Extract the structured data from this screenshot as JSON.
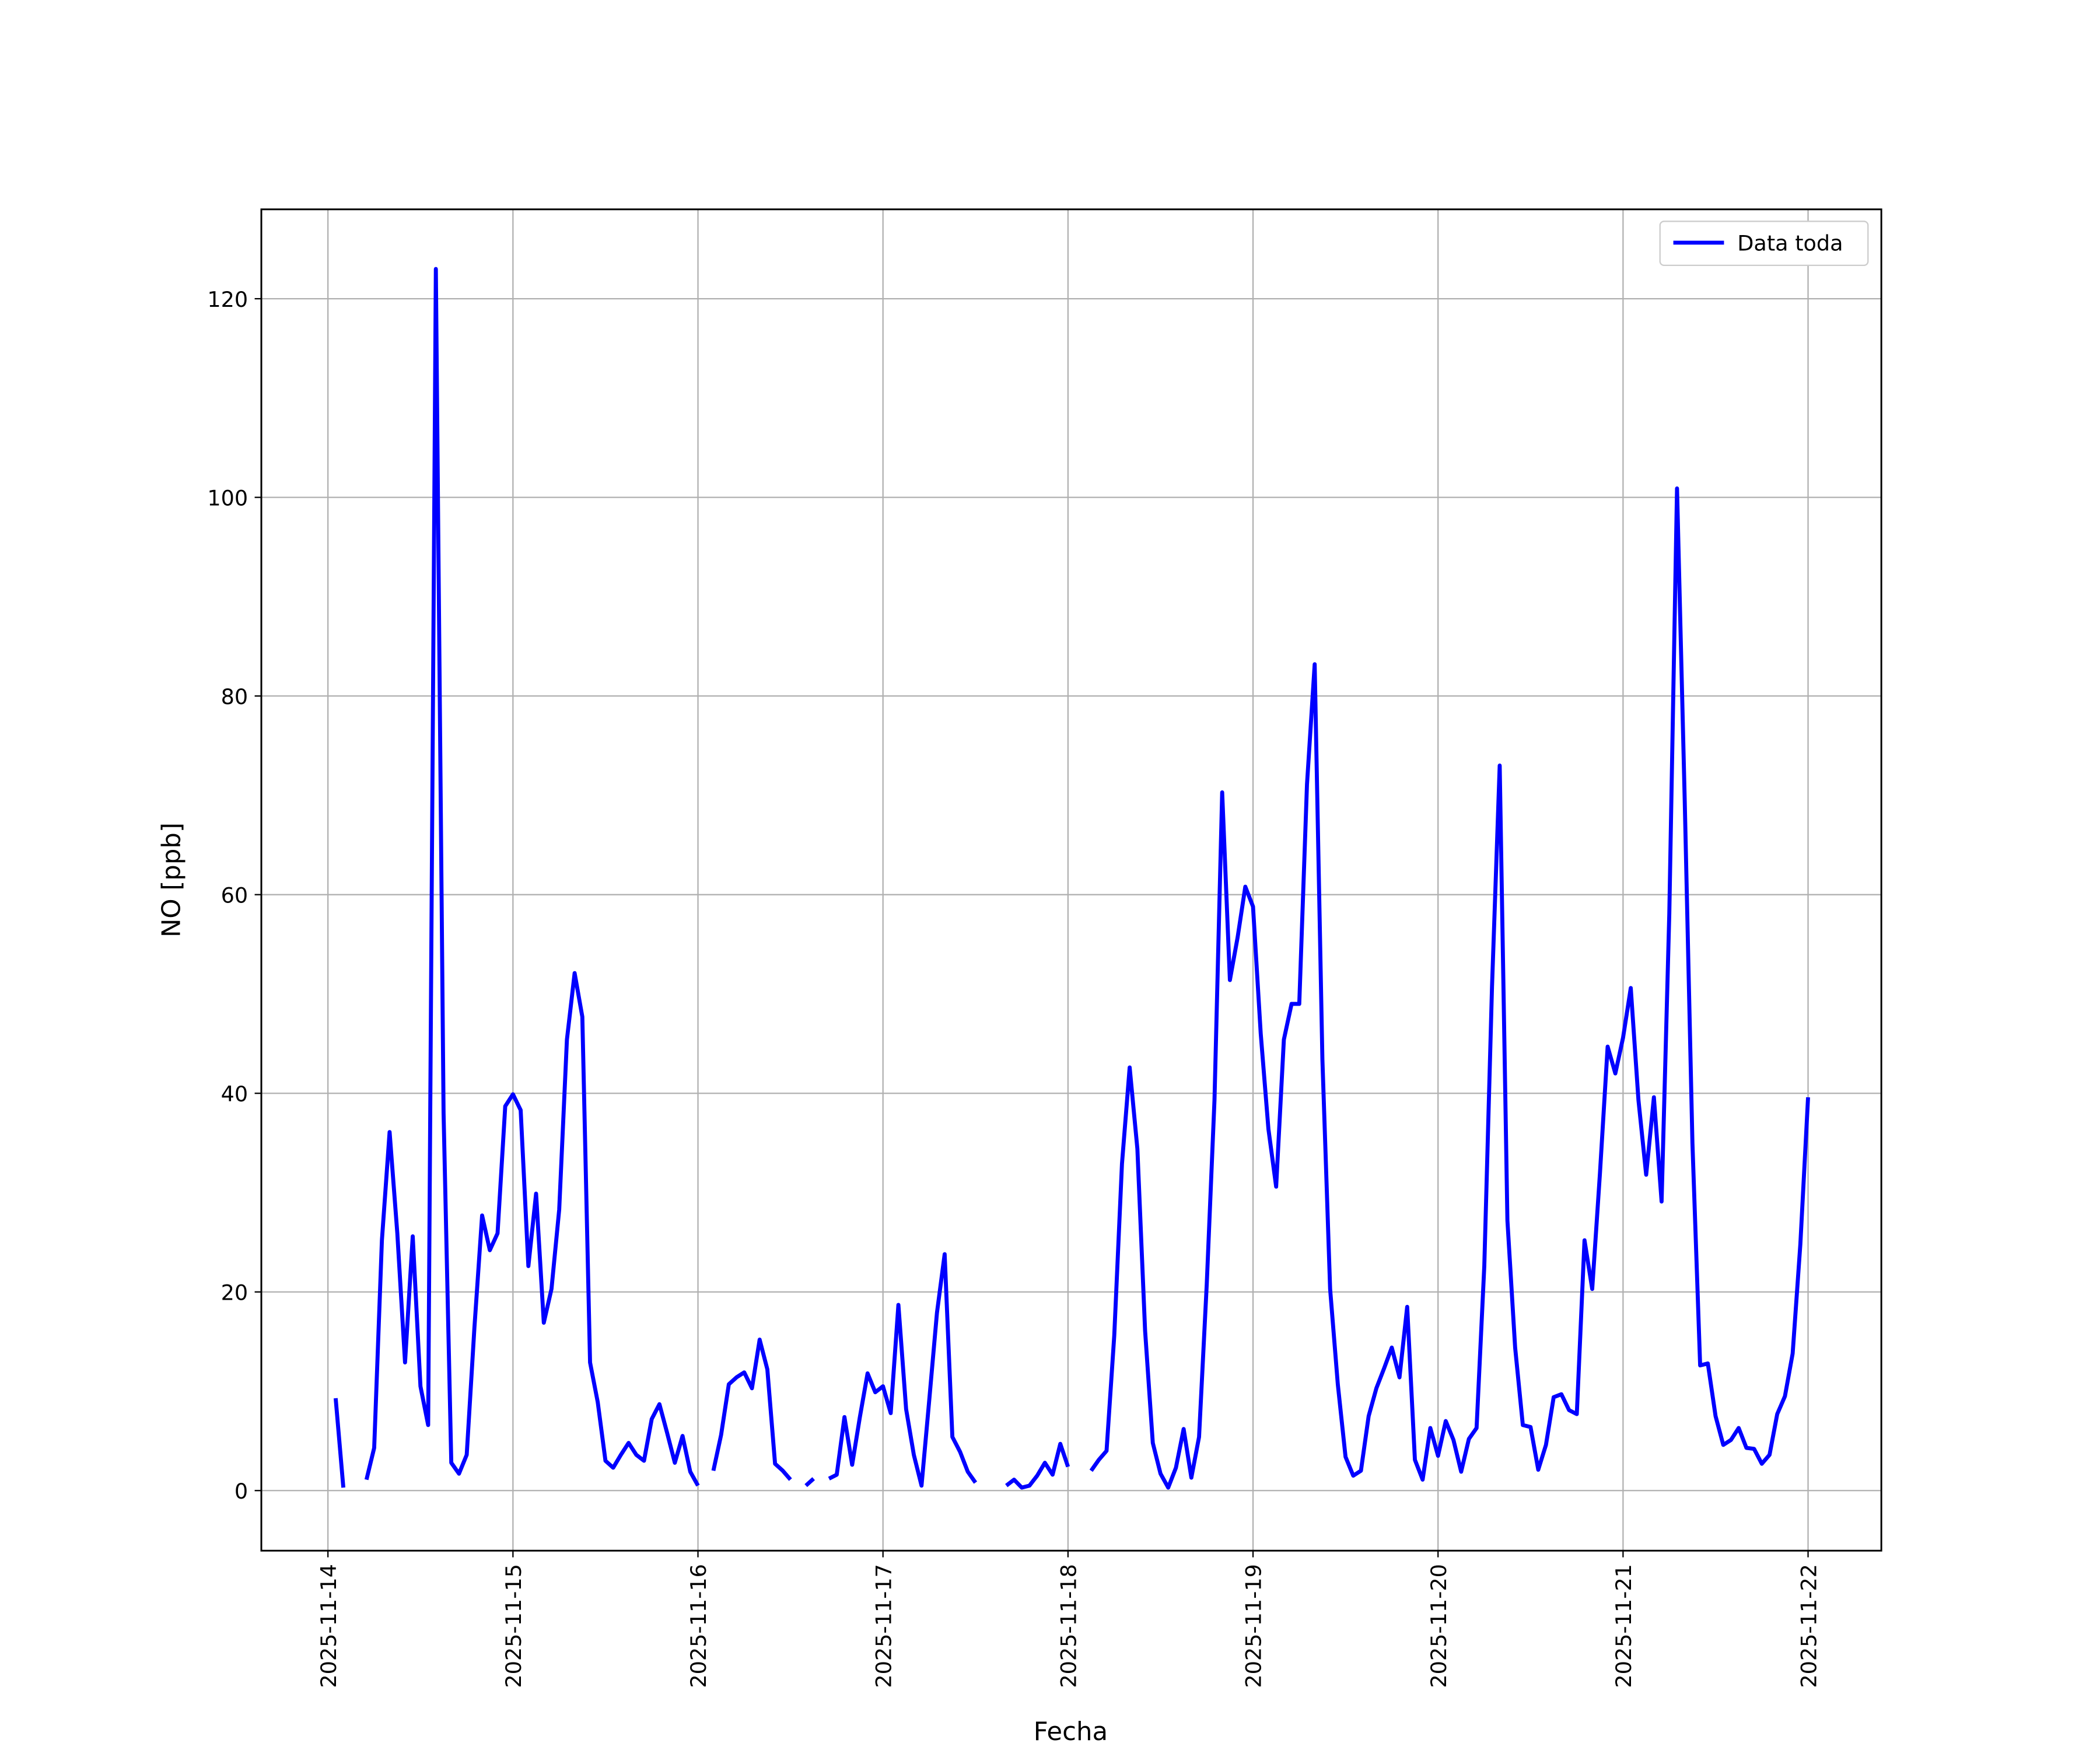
{
  "chart_data": {
    "type": "line",
    "xlabel": "Fecha",
    "ylabel": "NO [ppb]",
    "x": [
      0.0417,
      0.0833,
      0.125,
      0.1667,
      0.2083,
      0.25,
      0.2917,
      0.3333,
      0.375,
      0.4167,
      0.4583,
      0.5,
      0.5417,
      0.5833,
      0.625,
      0.6667,
      0.7083,
      0.75,
      0.7917,
      0.8333,
      0.875,
      0.9167,
      0.9583,
      1,
      1.0417,
      1.0833,
      1.125,
      1.1667,
      1.2083,
      1.25,
      1.2917,
      1.3333,
      1.375,
      1.4167,
      1.4583,
      1.5,
      1.5417,
      1.5833,
      1.625,
      1.6667,
      1.7083,
      1.75,
      1.7917,
      1.8333,
      1.875,
      1.9167,
      1.9583,
      2,
      2.0417,
      2.0833,
      2.125,
      2.1667,
      2.2083,
      2.25,
      2.2917,
      2.3333,
      2.375,
      2.4167,
      2.4583,
      2.5,
      2.5417,
      2.5833,
      2.625,
      2.6667,
      2.7083,
      2.75,
      2.7917,
      2.8333,
      2.875,
      2.9167,
      2.9583,
      3,
      3.0417,
      3.0833,
      3.125,
      3.1667,
      3.2083,
      3.25,
      3.2917,
      3.3333,
      3.375,
      3.4167,
      3.4583,
      3.5,
      3.5417,
      3.5833,
      3.625,
      3.6667,
      3.7083,
      3.75,
      3.7917,
      3.8333,
      3.875,
      3.9167,
      3.9583,
      4,
      4.0417,
      4.0833,
      4.125,
      4.1667,
      4.2083,
      4.25,
      4.2917,
      4.3333,
      4.375,
      4.4167,
      4.4583,
      4.5,
      4.5417,
      4.5833,
      4.625,
      4.6667,
      4.7083,
      4.75,
      4.7917,
      4.8333,
      4.875,
      4.9167,
      4.9583,
      5,
      5.0417,
      5.0833,
      5.125,
      5.1667,
      5.2083,
      5.25,
      5.2917,
      5.3333,
      5.375,
      5.4167,
      5.4583,
      5.5,
      5.5417,
      5.5833,
      5.625,
      5.6667,
      5.7083,
      5.75,
      5.7917,
      5.8333,
      5.875,
      5.9167,
      5.9583,
      6,
      6.0417,
      6.0833,
      6.125,
      6.1667,
      6.2083,
      6.25,
      6.2917,
      6.3333,
      6.375,
      6.4167,
      6.4583,
      6.5,
      6.5417,
      6.5833,
      6.625,
      6.6667,
      6.7083,
      6.75,
      6.7917,
      6.8333,
      6.875,
      6.9167,
      6.9583,
      7,
      7.0417,
      7.0833,
      7.125,
      7.1667,
      7.2083,
      7.25,
      7.2917,
      7.3333,
      7.375,
      7.4167,
      7.4583,
      7.5,
      7.5417,
      7.5833,
      7.625,
      7.6667,
      7.7083,
      7.75,
      7.7917,
      7.8333,
      7.875,
      7.9167,
      7.9583,
      8
    ],
    "series": [
      {
        "name": "Data toda",
        "color": "#0000ff",
        "values": [
          9.3,
          0.3,
          null,
          null,
          1.1,
          4.3,
          25.2,
          36.1,
          25.9,
          12.9,
          25.6,
          10.5,
          6.6,
          123,
          38,
          2.8,
          1.7,
          3.6,
          16.4,
          27.7,
          24.2,
          25.9,
          38.7,
          39.9,
          38.3,
          22.6,
          29.9,
          16.9,
          20.3,
          28.3,
          45.4,
          52.1,
          47.7,
          12.9,
          8.9,
          3.0,
          2.3,
          3.6,
          4.8,
          3.6,
          3.0,
          7.2,
          8.7,
          5.8,
          2.8,
          5.5,
          1.9,
          0.5,
          null,
          2.0,
          5.6,
          10.7,
          11.4,
          11.9,
          10.3,
          15.2,
          12.2,
          2.7,
          2.0,
          1.1,
          null,
          0.5,
          1.2,
          null,
          1.2,
          1.6,
          7.4,
          2.6,
          7.4,
          11.8,
          9.9,
          10.5,
          7.8,
          18.7,
          8.2,
          3.6,
          0.5,
          9.1,
          17.9,
          23.8,
          5.4,
          3.9,
          1.9,
          0.8,
          null,
          null,
          null,
          0.5,
          1.1,
          0.3,
          0.5,
          1.5,
          2.8,
          1.6,
          4.7,
          2.4,
          null,
          null,
          2.0,
          3.1,
          4.0,
          15.6,
          32.9,
          42.6,
          34.4,
          16.1,
          4.8,
          1.7,
          0.3,
          2.3,
          6.2,
          1.3,
          5.4,
          20.8,
          39.3,
          70.3,
          51.4,
          55.7,
          60.8,
          58.8,
          46.0,
          36.4,
          30.6,
          45.4,
          49.0,
          49.0,
          71.1,
          83.2,
          43.4,
          20.3,
          10.7,
          3.4,
          1.5,
          2.0,
          7.5,
          10.3,
          12.3,
          14.4,
          11.4,
          18.5,
          3.1,
          1.1,
          6.3,
          3.5,
          7.0,
          5.1,
          1.9,
          5.2,
          6.3,
          22.6,
          50.7,
          73.0,
          27.2,
          14.4,
          6.6,
          6.4,
          2.1,
          4.6,
          9.4,
          9.7,
          8.1,
          7.7,
          25.2,
          20.3,
          31.9,
          44.7,
          42.0,
          45.6,
          50.6,
          39.3,
          31.8,
          39.6,
          29.1,
          58.1,
          100.9,
          69.5,
          35.0,
          12.6,
          12.8,
          7.5,
          4.6,
          5.1,
          6.3,
          4.3,
          4.2,
          2.7,
          3.6,
          7.7,
          9.5,
          13.8,
          24.8,
          39.6
        ]
      }
    ],
    "xlim": [
      -0.36,
      8.396
    ],
    "xticks": [
      {
        "value": 0,
        "label": "2025-11-14"
      },
      {
        "value": 1,
        "label": "2025-11-15"
      },
      {
        "value": 2,
        "label": "2025-11-16"
      },
      {
        "value": 3,
        "label": "2025-11-17"
      },
      {
        "value": 4,
        "label": "2025-11-18"
      },
      {
        "value": 5,
        "label": "2025-11-19"
      },
      {
        "value": 6,
        "label": "2025-11-20"
      },
      {
        "value": 7,
        "label": "2025-11-21"
      },
      {
        "value": 8,
        "label": "2025-11-22"
      }
    ],
    "ylim": [
      -6.05,
      129.0
    ],
    "yticks": [
      0,
      20,
      40,
      60,
      80,
      100,
      120
    ],
    "grid": true,
    "legend": "upper right"
  }
}
